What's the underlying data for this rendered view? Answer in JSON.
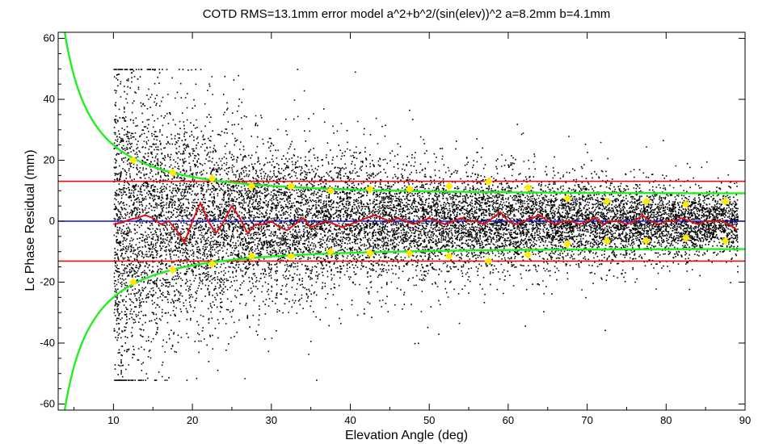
{
  "chart_data": {
    "type": "scatter",
    "title": "COTD RMS=13.1mm error model a^2+b^2/(sin(elev))^2 a=8.2mm b=4.1mm",
    "xlabel": "Elevation Angle (deg)",
    "ylabel": "Lc Phase Residual (mm)",
    "xlim": [
      3,
      90
    ],
    "ylim": [
      -62,
      62
    ],
    "xticks": [
      10,
      20,
      30,
      40,
      50,
      60,
      70,
      80,
      90
    ],
    "yticks": [
      -60,
      -40,
      -20,
      0,
      20,
      40,
      60
    ],
    "rms_mm": 13.1,
    "model_a_mm": 8.2,
    "model_b_mm": 4.1,
    "scatter_x_range": [
      10,
      89
    ],
    "series": [
      {
        "name": "",
        "kind": "mean-residual-line",
        "color": "#e01010",
        "x": [
          10,
          11,
          12,
          13,
          14,
          15,
          16,
          17,
          18,
          19,
          20,
          21,
          22,
          23,
          24,
          25,
          26,
          27,
          28,
          29,
          30,
          31,
          32,
          33,
          34,
          35,
          36,
          37,
          38,
          39,
          40,
          41,
          42,
          43,
          44,
          45,
          46,
          47,
          48,
          49,
          50,
          51,
          52,
          53,
          54,
          55,
          56,
          57,
          58,
          59,
          60,
          61,
          62,
          63,
          64,
          65,
          66,
          67,
          68,
          69,
          70,
          71,
          72,
          73,
          74,
          75,
          76,
          77,
          78,
          79,
          80,
          81,
          82,
          83,
          84,
          85,
          86,
          87,
          88,
          89
        ],
        "values": [
          -1,
          -0.5,
          0.5,
          1,
          2,
          1,
          -1,
          0,
          -3,
          -7,
          0,
          6,
          0,
          -4,
          0,
          5,
          1,
          -4,
          -1,
          -1,
          0,
          -2,
          -3,
          -1,
          1,
          -2,
          -1,
          0,
          -1,
          -2,
          -1,
          0,
          1,
          2,
          1,
          0,
          1,
          0,
          -1,
          0,
          1,
          0,
          -1,
          0,
          1,
          0,
          0,
          -1,
          1,
          3,
          0,
          -1,
          0,
          1,
          2,
          0,
          -1,
          0,
          0,
          -1,
          0,
          1,
          -1,
          0,
          0,
          -1,
          0,
          2,
          0,
          -1,
          0,
          0,
          1,
          0,
          -1,
          0,
          0,
          0,
          -1,
          -3
        ]
      },
      {
        "name": "",
        "kind": "rms-binned",
        "color": "#ffeb00",
        "x": [
          12.5,
          17.5,
          22.5,
          27.5,
          32.5,
          37.5,
          42.5,
          47.5,
          52.5,
          57.5,
          62.5,
          67.5,
          72.5,
          77.5,
          82.5,
          87.5
        ],
        "values": [
          20,
          16,
          14,
          11.5,
          11.5,
          10,
          10.5,
          10.5,
          11.5,
          13,
          11,
          7.5,
          6.5,
          6.5,
          5.5,
          6.5
        ]
      }
    ],
    "reference_lines": [
      {
        "name": "",
        "y": 13.1,
        "color": "#e01010"
      },
      {
        "name": "",
        "y": -13.1,
        "color": "#e01010"
      },
      {
        "name": "",
        "y": 0,
        "color": "#1010e0"
      }
    ],
    "model_curve_color": "#22ee22",
    "grid": false,
    "legend": "none"
  }
}
